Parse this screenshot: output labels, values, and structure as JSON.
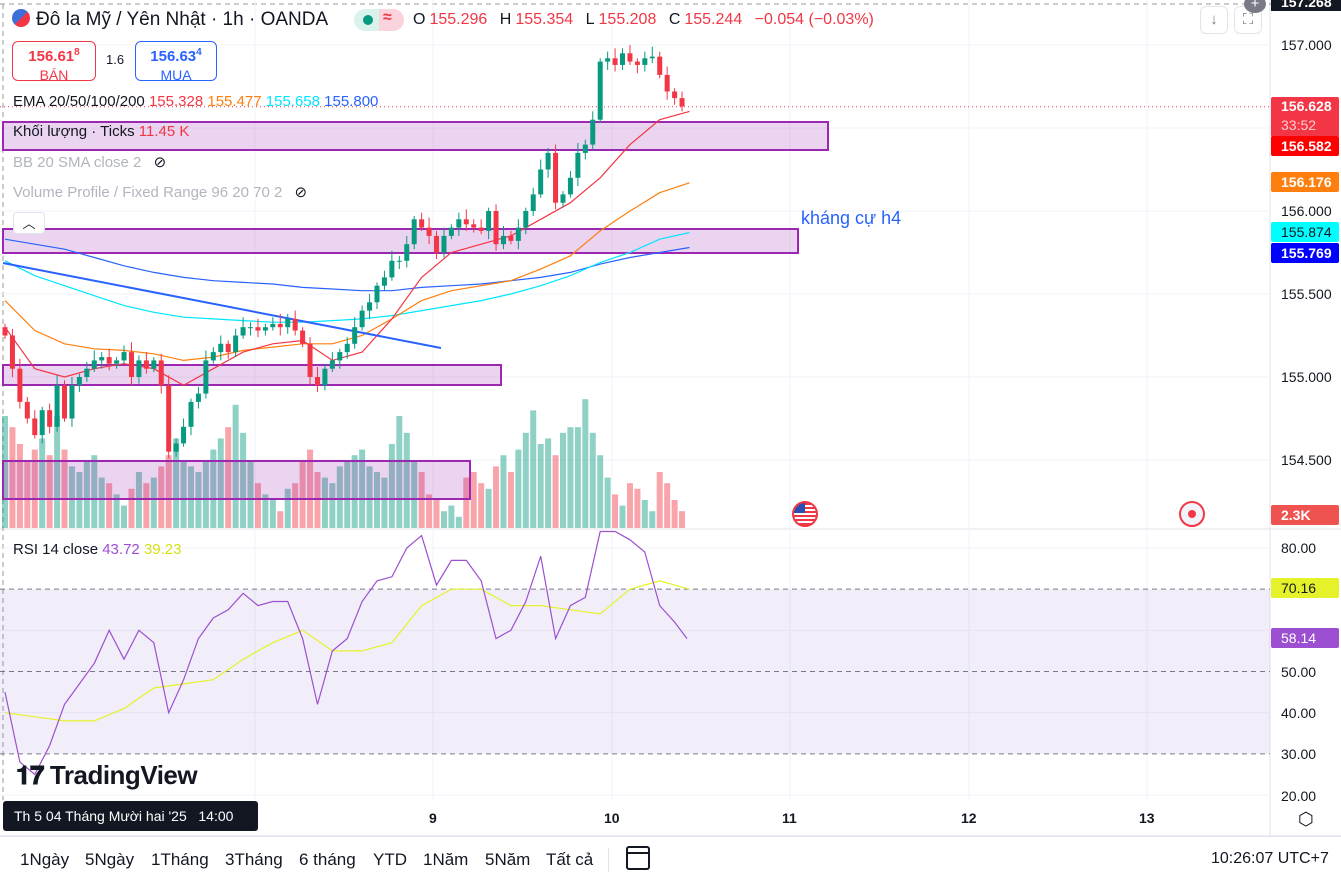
{
  "header": {
    "symbol": "Đô la Mỹ / Yên Nhật · 1h · OANDA",
    "o_label": "O",
    "o": "155.296",
    "h_label": "H",
    "h": "155.354",
    "l_label": "L",
    "l": "155.208",
    "c_label": "C",
    "c": "155.244",
    "change": "−0.054 (−0.03%)"
  },
  "bid": {
    "price": "156.61",
    "sup": "8",
    "label": "BÁN"
  },
  "spread": "1.6",
  "ask": {
    "price": "156.63",
    "sup": "4",
    "label": "MUA"
  },
  "indicators": {
    "ema": {
      "name": "EMA 20/50/100/200",
      "v20": "155.328",
      "v50": "155.477",
      "v100": "155.658",
      "v200": "155.800"
    },
    "volume": {
      "name": "Khối lượng · Ticks",
      "value": "11.45 K"
    },
    "bb": {
      "name": "BB 20 SMA close 2"
    },
    "vp": {
      "name": "Volume Profile / Fixed Range 96 20 70 2"
    },
    "rsi": {
      "name": "RSI 14 close",
      "v": "43.72",
      "ma": "39.23"
    }
  },
  "annotation": "kháng cự h4",
  "price_axis": {
    "top": "157.268",
    "ticks": [
      "157.000",
      "156.000",
      "155.500",
      "155.000",
      "154.500"
    ],
    "last": "156.628",
    "countdown": "33:52",
    "ema20": "156.582",
    "ema50": "156.176",
    "ema100": "155.874",
    "ema200": "155.769",
    "volume": "2.3K"
  },
  "rsi_axis": {
    "ticks": [
      "80.00",
      "50.00",
      "40.00",
      "30.00",
      "20.00"
    ],
    "ma": "70.16",
    "rsi": "58.14"
  },
  "time_axis": {
    "crosshair": "Th 5 04 Tháng Mười hai '25   14:00",
    "ticks": [
      "9",
      "10",
      "11",
      "12",
      "13"
    ]
  },
  "watermark": "TradingView",
  "ranges": [
    "1Ngày",
    "5Ngày",
    "1Tháng",
    "3Tháng",
    "6 tháng",
    "YTD",
    "1Năm",
    "5Năm",
    "Tất cả"
  ],
  "clock": "10:26:07 UTC+7",
  "colors": {
    "up": "#089981",
    "down": "#f23645",
    "ema20": "#f23645",
    "ema50": "#ff7f0e",
    "ema100": "#00e5ff",
    "ema200": "#2962ff",
    "rsi": "#9c4fd0",
    "rsi_ma": "#e5f22a",
    "zone": "#9c27b0",
    "trend": "#2962ff"
  },
  "chart_data": {
    "type": "candlestick",
    "closes": [
      155.25,
      155.05,
      154.85,
      154.75,
      154.65,
      154.8,
      154.7,
      154.95,
      154.75,
      154.95,
      155.0,
      155.05,
      155.1,
      155.12,
      155.08,
      155.1,
      155.15,
      155.0,
      155.1,
      155.05,
      155.1,
      154.95,
      154.55,
      154.6,
      154.7,
      154.85,
      154.9,
      155.1,
      155.15,
      155.2,
      155.15,
      155.25,
      155.3,
      155.3,
      155.28,
      155.3,
      155.32,
      155.3,
      155.35,
      155.28,
      155.2,
      155.0,
      154.95,
      155.05,
      155.1,
      155.15,
      155.2,
      155.3,
      155.4,
      155.45,
      155.55,
      155.6,
      155.7,
      155.7,
      155.8,
      155.95,
      155.9,
      155.85,
      155.75,
      155.85,
      155.9,
      155.95,
      155.92,
      155.9,
      155.88,
      156.0,
      155.8,
      155.85,
      155.82,
      155.9,
      156.0,
      156.1,
      156.25,
      156.35,
      156.05,
      156.1,
      156.2,
      156.35,
      156.4,
      156.55,
      156.9,
      156.92,
      156.88,
      156.95,
      156.9,
      156.88,
      156.92,
      156.93,
      156.82,
      156.72,
      156.68,
      156.63
    ],
    "volumes_k": [
      20,
      18,
      15,
      12,
      14,
      16,
      13,
      20,
      14,
      11,
      10,
      12,
      13,
      9,
      8,
      6,
      4,
      7,
      10,
      8,
      9,
      11,
      13,
      16,
      12,
      11,
      10,
      12,
      14,
      16,
      18,
      22,
      17,
      12,
      8,
      6,
      5,
      3,
      7,
      8,
      12,
      14,
      10,
      9,
      8,
      11,
      12,
      13,
      14,
      11,
      10,
      9,
      15,
      20,
      17,
      12,
      10,
      6,
      5,
      3,
      4,
      2,
      9,
      10,
      8,
      7,
      11,
      13,
      10,
      14,
      17,
      21,
      15,
      16,
      13,
      17,
      18,
      18,
      23,
      17,
      13,
      9,
      6,
      4,
      8,
      7,
      5,
      3,
      10,
      8,
      5,
      3
    ],
    "ema20": [
      155.3,
      155.05,
      155.0,
      155.05,
      155.08,
      155.05,
      154.95,
      155.05,
      155.15,
      155.2,
      155.22,
      155.1,
      155.15,
      155.35,
      155.6,
      155.75,
      155.8,
      155.85,
      155.95,
      156.05,
      156.2,
      156.4,
      156.55,
      156.6
    ],
    "ema50": [
      155.46,
      155.28,
      155.2,
      155.17,
      155.16,
      155.14,
      155.1,
      155.12,
      155.16,
      155.18,
      155.2,
      155.2,
      155.25,
      155.35,
      155.46,
      155.52,
      155.55,
      155.58,
      155.65,
      155.73,
      155.88,
      156.0,
      156.11,
      156.17
    ],
    "ema100": [
      155.7,
      155.61,
      155.55,
      155.49,
      155.43,
      155.39,
      155.36,
      155.35,
      155.34,
      155.33,
      155.33,
      155.34,
      155.35,
      155.37,
      155.4,
      155.43,
      155.46,
      155.5,
      155.55,
      155.61,
      155.69,
      155.75,
      155.83,
      155.87
    ],
    "ema200": [
      155.83,
      155.8,
      155.77,
      155.72,
      155.67,
      155.63,
      155.6,
      155.58,
      155.57,
      155.56,
      155.54,
      155.53,
      155.52,
      155.52,
      155.54,
      155.55,
      155.56,
      155.58,
      155.6,
      155.63,
      155.68,
      155.72,
      155.75,
      155.78
    ],
    "rsi": [
      45,
      28,
      25,
      32,
      42,
      47,
      52,
      60,
      53,
      60,
      57,
      40,
      48,
      58,
      63,
      65,
      69,
      66,
      67,
      67,
      58,
      42,
      55,
      58,
      67,
      72,
      73,
      80,
      83,
      71,
      77,
      77,
      72,
      58,
      60,
      67,
      78,
      58,
      66,
      68,
      84,
      84,
      82,
      79,
      66,
      62,
      58
    ],
    "rsi_ma": [
      40,
      39,
      38,
      38,
      41,
      46,
      47,
      48,
      53,
      57,
      60,
      55,
      55,
      57,
      66,
      70,
      70,
      66,
      66,
      65,
      64,
      70,
      72,
      70
    ],
    "price_range": [
      154.2,
      157.27
    ],
    "rsi_range": [
      20,
      80
    ],
    "rsi_bands": [
      70,
      50,
      30
    ]
  }
}
